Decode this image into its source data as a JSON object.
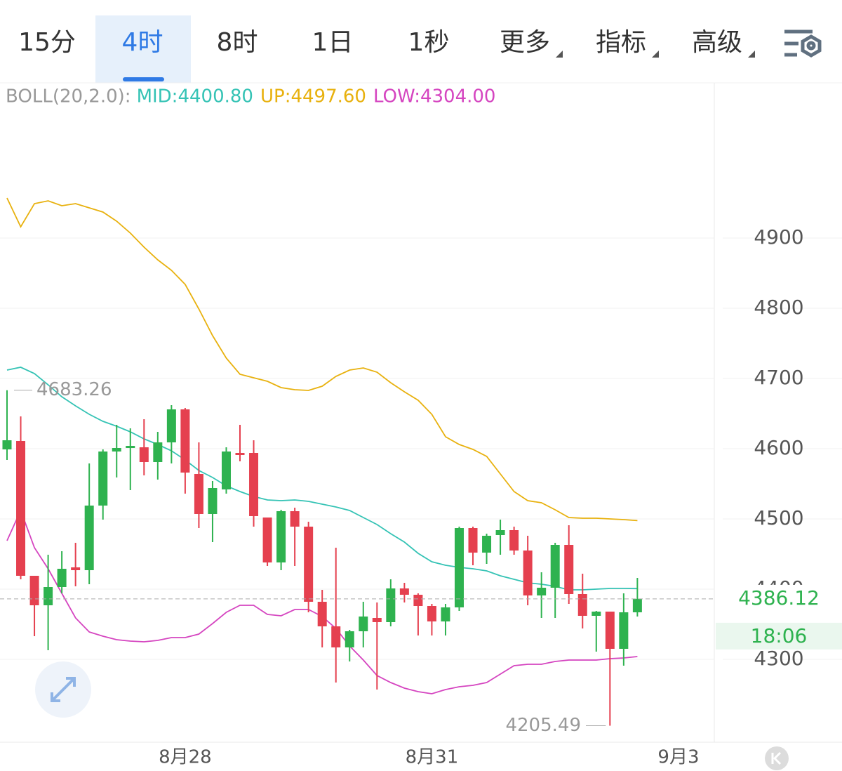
{
  "toolbar": {
    "tabs": [
      "15分",
      "4时",
      "8时",
      "1日",
      "1秒",
      "更多",
      "指标",
      "高级"
    ],
    "active": 1
  },
  "chart_data": {
    "type": "candlestick",
    "categories": [
      null,
      null,
      null,
      null,
      null,
      null,
      null,
      null,
      null,
      null,
      null,
      null,
      null,
      "8月28",
      null,
      null,
      null,
      null,
      null,
      null,
      null,
      null,
      null,
      null,
      null,
      null,
      null,
      null,
      null,
      null,
      null,
      "8月31",
      null,
      null,
      null,
      null,
      null,
      null,
      null,
      null,
      null,
      null,
      null,
      null,
      null,
      null,
      null,
      null,
      null,
      "9月3"
    ],
    "open": [
      4599,
      4611,
      4419,
      4377,
      4403,
      4431,
      4427,
      4519,
      4596,
      4601,
      4602,
      4581,
      4609,
      4656,
      4564,
      4507,
      4542,
      4594,
      4594,
      4502,
      4438,
      4511,
      4489,
      4382,
      4347,
      4317,
      4340,
      4359,
      4353,
      4401,
      4392,
      4376,
      4354,
      4374,
      4487,
      4452,
      4477,
      4484,
      4455,
      4391,
      4402,
      4463,
      4393,
      4362,
      4368,
      4315,
      4367,
      null,
      null,
      null
    ],
    "high": [
      4683.26,
      4646,
      4419,
      4449,
      4454,
      4466,
      4579,
      4599,
      4634,
      4629,
      4642,
      4624,
      4662,
      4658,
      4609,
      4554,
      4602,
      4634,
      4612,
      4502,
      4513,
      4516,
      4496,
      4399,
      4459,
      4342,
      4382,
      4381,
      4414,
      4409,
      4394,
      4379,
      4379,
      4489,
      4489,
      4479,
      4499,
      4489,
      4476,
      4424,
      4466,
      4491,
      4422,
      4369,
      4368,
      4394,
      4416,
      null,
      null,
      null
    ],
    "low": [
      4584,
      4414,
      4333,
      4313,
      4394,
      4404,
      4407,
      4499,
      4559,
      4541,
      4562,
      4556,
      4579,
      4536,
      4487,
      4467,
      4536,
      4582,
      4489,
      4433,
      4427,
      4433,
      4367,
      4317,
      4267,
      4297,
      4317,
      4257,
      4347,
      4381,
      4334,
      4334,
      4334,
      4369,
      4434,
      4436,
      4449,
      4449,
      4377,
      4359,
      4359,
      4379,
      4344,
      4311,
      4205.49,
      4291,
      4361,
      null,
      null,
      null
    ],
    "close": [
      4612,
      4419,
      4377,
      4403,
      4429,
      4427,
      4519,
      4596,
      4601,
      4604,
      4581,
      4609,
      4656,
      4566,
      4507,
      4544,
      4596,
      4591,
      4504,
      4438,
      4511,
      4489,
      4382,
      4347,
      4317,
      4340,
      4361,
      4353,
      4401,
      4392,
      4376,
      4354,
      4374,
      4487,
      4452,
      4476,
      4484,
      4455,
      4391,
      4402,
      4463,
      4393,
      4362,
      4368,
      4315,
      4367,
      4386.12,
      null,
      null,
      null
    ],
    "up_color": "#2eb24f",
    "down_color": "#e5404f",
    "indicator": "BOLL(20,2.0):",
    "series": [
      {
        "name": "MID:",
        "legend_value": "4400.80",
        "color": "#35c3b5",
        "values": [
          4712,
          4716,
          4707,
          4691,
          4674,
          4661,
          4649,
          4639,
          4632,
          4624,
          4614,
          4606,
          4597,
          4584,
          4569,
          4559,
          4547,
          4539,
          4532,
          4527,
          4526,
          4527,
          4525,
          4521,
          4517,
          4512,
          4502,
          4492,
          4479,
          4467,
          4451,
          4439,
          4434,
          4431,
          4429,
          4426,
          4419,
          4414,
          4409,
          4407,
          4404,
          4399,
          4399,
          4400,
          4401,
          4401,
          4400.8,
          null,
          null,
          null
        ]
      },
      {
        "name": "UP:",
        "legend_value": "4497.60",
        "color": "#e8b10e",
        "values": [
          4957,
          4916,
          4949,
          4953,
          4946,
          4949,
          4943,
          4937,
          4924,
          4907,
          4887,
          4869,
          4854,
          4834,
          4799,
          4761,
          4729,
          4706,
          4701,
          4696,
          4687,
          4684,
          4683,
          4689,
          4703,
          4712,
          4715,
          4709,
          4694,
          4681,
          4669,
          4649,
          4617,
          4606,
          4599,
          4589,
          4564,
          4539,
          4526,
          4523,
          4513,
          4502,
          4501,
          4501,
          4500,
          4499,
          4497.6,
          null,
          null,
          null
        ]
      },
      {
        "name": "LOW:",
        "legend_value": "4304.00",
        "color": "#d545c0",
        "values": [
          4469,
          4512,
          4459,
          4429,
          4394,
          4359,
          4339,
          4333,
          4328,
          4326,
          4325,
          4327,
          4331,
          4331,
          4336,
          4351,
          4367,
          4377,
          4377,
          4364,
          4362,
          4371,
          4371,
          4361,
          4344,
          4319,
          4299,
          4277,
          4267,
          4259,
          4254,
          4251,
          4257,
          4261,
          4263,
          4267,
          4279,
          4291,
          4293,
          4293,
          4297,
          4299,
          4299,
          4299,
          4301,
          4302,
          4304,
          null,
          null,
          null
        ]
      }
    ],
    "countdown": "18:06",
    "ylim": [
      4182,
      5121
    ],
    "yticks": [
      4300,
      4400,
      4500,
      4600,
      4700,
      4800,
      4900
    ],
    "grid": true
  }
}
